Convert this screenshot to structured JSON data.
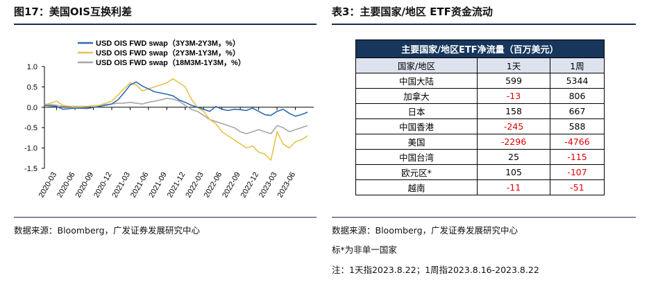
{
  "left": {
    "title": "图17：美国OIS互换利差",
    "source": "数据来源：Bloomberg，广发证券发展研究中心"
  },
  "right": {
    "title": "表3：主要国家/地区 ETF资金流动",
    "source": "数据来源：Bloomberg，广发证券发展研究中心",
    "note1": "标*为非单一国家",
    "note2": "注：1天指2023.8.22；1周指2023.8.16-2023.8.22"
  },
  "table": {
    "title": "主要国家/地区ETF净流量（百万美元）",
    "headers": [
      "国家/地区",
      "1天",
      "1周"
    ],
    "rows": [
      {
        "region": "中国大陆",
        "day": "599",
        "week": "5344"
      },
      {
        "region": "加拿大",
        "day": "-13",
        "week": "806"
      },
      {
        "region": "日本",
        "day": "158",
        "week": "667"
      },
      {
        "region": "中国香港",
        "day": "-245",
        "week": "588"
      },
      {
        "region": "美国",
        "day": "-2296",
        "week": "-4766"
      },
      {
        "region": "中国台湾",
        "day": "25",
        "week": "-115"
      },
      {
        "region": "欧元区*",
        "day": "105",
        "week": "-107"
      },
      {
        "region": "越南",
        "day": "-11",
        "week": "-51"
      }
    ],
    "colors": {
      "title_bg": "#16365c",
      "header_bg": "#dde3ee",
      "negative": "#e00000"
    }
  },
  "chart_data": {
    "type": "line",
    "ylim": [
      -1.5,
      1.0
    ],
    "yticks": [
      "1.0",
      "0.5",
      "0.0",
      "-0.5",
      "-1.0",
      "-1.5"
    ],
    "xticks": [
      "2020-03",
      "2020-06",
      "2020-09",
      "2020-12",
      "2021-03",
      "2021-06",
      "2021-09",
      "2021-12",
      "2022-03",
      "2022-06",
      "2022-09",
      "2022-12",
      "2023-03",
      "2023-06"
    ],
    "x_start": "2020-01",
    "x_end": "2023-09",
    "series": [
      {
        "name": "USD OIS FWD swap（3Y3M-2Y3M，%）",
        "color": "#2e6ab1",
        "points": [
          [
            "2020-01",
            0.05
          ],
          [
            "2020-03",
            0.02
          ],
          [
            "2020-04",
            -0.05
          ],
          [
            "2020-06",
            -0.02
          ],
          [
            "2020-08",
            -0.03
          ],
          [
            "2020-10",
            0.02
          ],
          [
            "2020-12",
            0.08
          ],
          [
            "2021-01",
            0.18
          ],
          [
            "2021-02",
            0.35
          ],
          [
            "2021-03",
            0.55
          ],
          [
            "2021-04",
            0.62
          ],
          [
            "2021-05",
            0.52
          ],
          [
            "2021-06",
            0.45
          ],
          [
            "2021-07",
            0.38
          ],
          [
            "2021-08",
            0.35
          ],
          [
            "2021-09",
            0.32
          ],
          [
            "2021-10",
            0.28
          ],
          [
            "2021-11",
            0.18
          ],
          [
            "2021-12",
            0.12
          ],
          [
            "2022-01",
            0.05
          ],
          [
            "2022-02",
            0.0
          ],
          [
            "2022-03",
            -0.05
          ],
          [
            "2022-04",
            -0.1
          ],
          [
            "2022-05",
            0.02
          ],
          [
            "2022-06",
            -0.05
          ],
          [
            "2022-07",
            -0.08
          ],
          [
            "2022-08",
            -0.05
          ],
          [
            "2022-09",
            -0.06
          ],
          [
            "2022-10",
            -0.08
          ],
          [
            "2022-11",
            -0.02
          ],
          [
            "2022-12",
            -0.1
          ],
          [
            "2023-01",
            -0.18
          ],
          [
            "2023-02",
            -0.2
          ],
          [
            "2023-03",
            -0.1
          ],
          [
            "2023-04",
            -0.05
          ],
          [
            "2023-05",
            -0.15
          ],
          [
            "2023-06",
            -0.22
          ],
          [
            "2023-07",
            -0.18
          ],
          [
            "2023-08",
            -0.12
          ]
        ]
      },
      {
        "name": "USD OIS FWD swap（2Y3M-1Y3M，%）",
        "color": "#e8c24c",
        "points": [
          [
            "2020-01",
            0.05
          ],
          [
            "2020-03",
            0.15
          ],
          [
            "2020-04",
            0.05
          ],
          [
            "2020-06",
            0.0
          ],
          [
            "2020-08",
            0.02
          ],
          [
            "2020-10",
            0.05
          ],
          [
            "2020-12",
            0.15
          ],
          [
            "2021-01",
            0.3
          ],
          [
            "2021-02",
            0.45
          ],
          [
            "2021-03",
            0.6
          ],
          [
            "2021-04",
            0.55
          ],
          [
            "2021-05",
            0.4
          ],
          [
            "2021-06",
            0.45
          ],
          [
            "2021-07",
            0.5
          ],
          [
            "2021-08",
            0.55
          ],
          [
            "2021-09",
            0.6
          ],
          [
            "2021-10",
            0.7
          ],
          [
            "2021-11",
            0.6
          ],
          [
            "2021-12",
            0.5
          ],
          [
            "2022-01",
            0.2
          ],
          [
            "2022-02",
            0.0
          ],
          [
            "2022-03",
            -0.1
          ],
          [
            "2022-04",
            -0.3
          ],
          [
            "2022-05",
            -0.4
          ],
          [
            "2022-06",
            -0.6
          ],
          [
            "2022-07",
            -0.7
          ],
          [
            "2022-08",
            -0.8
          ],
          [
            "2022-09",
            -0.9
          ],
          [
            "2022-10",
            -1.0
          ],
          [
            "2022-11",
            -0.95
          ],
          [
            "2022-12",
            -1.1
          ],
          [
            "2023-01",
            -1.15
          ],
          [
            "2023-02",
            -1.3
          ],
          [
            "2023-03",
            -0.6
          ],
          [
            "2023-04",
            -0.9
          ],
          [
            "2023-05",
            -1.0
          ],
          [
            "2023-06",
            -0.85
          ],
          [
            "2023-07",
            -0.8
          ],
          [
            "2023-08",
            -0.7
          ]
        ]
      },
      {
        "name": "USD OIS FWD swap（18M3M-1Y3M，%）",
        "color": "#a6a6a6",
        "points": [
          [
            "2020-01",
            0.08
          ],
          [
            "2020-03",
            0.05
          ],
          [
            "2020-04",
            0.02
          ],
          [
            "2020-06",
            0.02
          ],
          [
            "2020-08",
            0.02
          ],
          [
            "2020-10",
            0.05
          ],
          [
            "2020-12",
            0.08
          ],
          [
            "2021-01",
            0.1
          ],
          [
            "2021-02",
            0.1
          ],
          [
            "2021-03",
            0.12
          ],
          [
            "2021-04",
            0.1
          ],
          [
            "2021-05",
            0.08
          ],
          [
            "2021-06",
            0.12
          ],
          [
            "2021-07",
            0.15
          ],
          [
            "2021-08",
            0.18
          ],
          [
            "2021-09",
            0.22
          ],
          [
            "2021-10",
            0.2
          ],
          [
            "2021-11",
            0.15
          ],
          [
            "2021-12",
            0.05
          ],
          [
            "2022-01",
            -0.05
          ],
          [
            "2022-02",
            -0.1
          ],
          [
            "2022-03",
            -0.2
          ],
          [
            "2022-04",
            -0.3
          ],
          [
            "2022-05",
            -0.35
          ],
          [
            "2022-06",
            -0.4
          ],
          [
            "2022-07",
            -0.45
          ],
          [
            "2022-08",
            -0.5
          ],
          [
            "2022-09",
            -0.6
          ],
          [
            "2022-10",
            -0.65
          ],
          [
            "2022-11",
            -0.6
          ],
          [
            "2022-12",
            -0.55
          ],
          [
            "2023-01",
            -0.6
          ],
          [
            "2023-02",
            -0.65
          ],
          [
            "2023-03",
            -0.45
          ],
          [
            "2023-04",
            -0.5
          ],
          [
            "2023-05",
            -0.6
          ],
          [
            "2023-06",
            -0.55
          ],
          [
            "2023-07",
            -0.5
          ],
          [
            "2023-08",
            -0.45
          ]
        ]
      }
    ]
  }
}
